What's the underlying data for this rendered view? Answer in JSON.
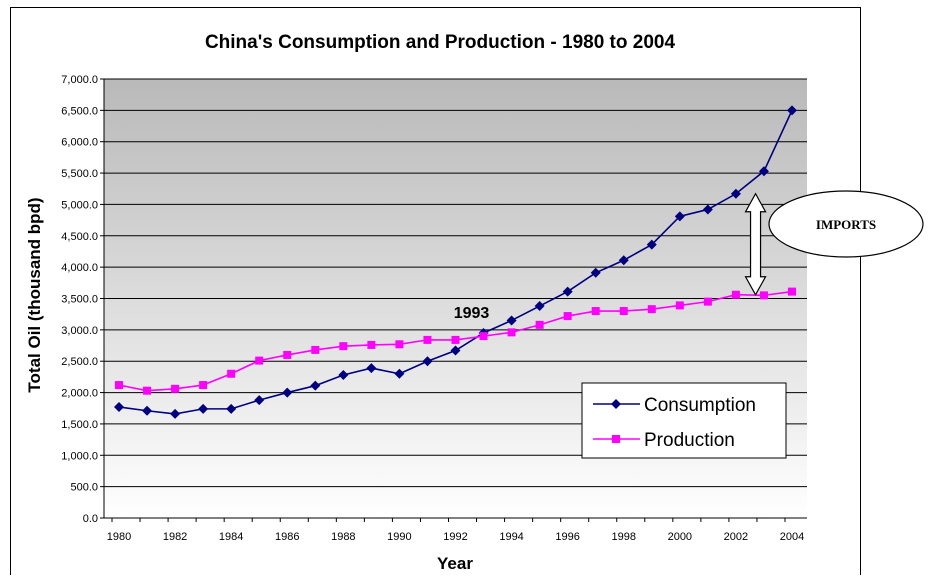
{
  "chart_data": {
    "type": "line",
    "title": "China's Consumption and Production - 1980 to 2004",
    "xlabel": "Year",
    "ylabel": "Total Oil (thousand bpd)",
    "x": [
      1980,
      1981,
      1982,
      1983,
      1984,
      1985,
      1986,
      1987,
      1988,
      1989,
      1990,
      1991,
      1992,
      1993,
      1994,
      1995,
      1996,
      1997,
      1998,
      1999,
      2000,
      2001,
      2002,
      2003,
      2004
    ],
    "x_tick_labels": [
      "1980",
      "1982",
      "1984",
      "1986",
      "1988",
      "1990",
      "1992",
      "1994",
      "1996",
      "1998",
      "2000",
      "2002",
      "2004"
    ],
    "y_tick_labels": [
      "0.0",
      "500.0",
      "1,000.0",
      "1,500.0",
      "2,000.0",
      "2,500.0",
      "3,000.0",
      "3,500.0",
      "4,000.0",
      "4,500.0",
      "5,000.0",
      "5,500.0",
      "6,000.0",
      "6,500.0",
      "7,000.0"
    ],
    "ylim": [
      0,
      7000
    ],
    "xlim": [
      1980,
      2004
    ],
    "grid": true,
    "legend_position": "bottom-right",
    "series": [
      {
        "name": "Consumption",
        "color": "#000080",
        "marker": "diamond",
        "values": [
          1770,
          1710,
          1660,
          1740,
          1740,
          1880,
          2000,
          2110,
          2280,
          2390,
          2300,
          2500,
          2670,
          2950,
          3150,
          3380,
          3610,
          3910,
          4110,
          4360,
          4810,
          4920,
          5170,
          5530,
          6500
        ]
      },
      {
        "name": "Production",
        "color": "#ff00ff",
        "marker": "square",
        "values": [
          2120,
          2030,
          2060,
          2120,
          2300,
          2510,
          2600,
          2680,
          2740,
          2760,
          2770,
          2840,
          2840,
          2900,
          2960,
          3080,
          3220,
          3300,
          3300,
          3330,
          3390,
          3450,
          3560,
          3550,
          3610
        ]
      }
    ],
    "annotations": [
      {
        "text": "1993",
        "x": 1993,
        "y": 3250
      },
      {
        "text": "IMPORTS",
        "type": "callout",
        "arrow_x": 2002.7,
        "arrow_from": 5170,
        "arrow_to": 3560
      }
    ]
  }
}
